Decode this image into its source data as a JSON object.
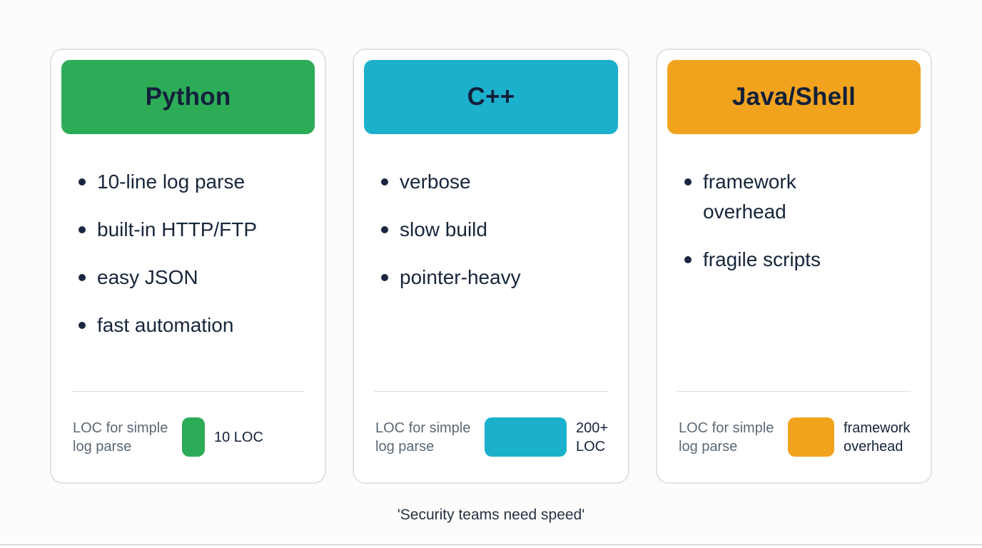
{
  "caption": "'Security teams need speed'",
  "cards": [
    {
      "id": "python",
      "title": "Python",
      "color": "#2dac57",
      "bullets": [
        "10-line log parse",
        "built-in HTTP/FTP",
        "easy JSON",
        "fast automation"
      ],
      "loc_label": "LOC for simple log parse",
      "loc_value": "10 LOC",
      "loc_bar_width": 32
    },
    {
      "id": "cpp",
      "title": "C++",
      "color": "#1bb1cd",
      "bullets": [
        "verbose",
        "slow build",
        "pointer-heavy"
      ],
      "loc_label": "LOC for simple log parse",
      "loc_value": "200+ LOC",
      "loc_bar_width": 115
    },
    {
      "id": "java-shell",
      "title": "Java/Shell",
      "color": "#f2a31e",
      "bullets": [
        "framework overhead",
        "fragile scripts"
      ],
      "loc_label": "LOC for simple log parse",
      "loc_value": "framework overhead",
      "loc_bar_width": 65
    }
  ]
}
